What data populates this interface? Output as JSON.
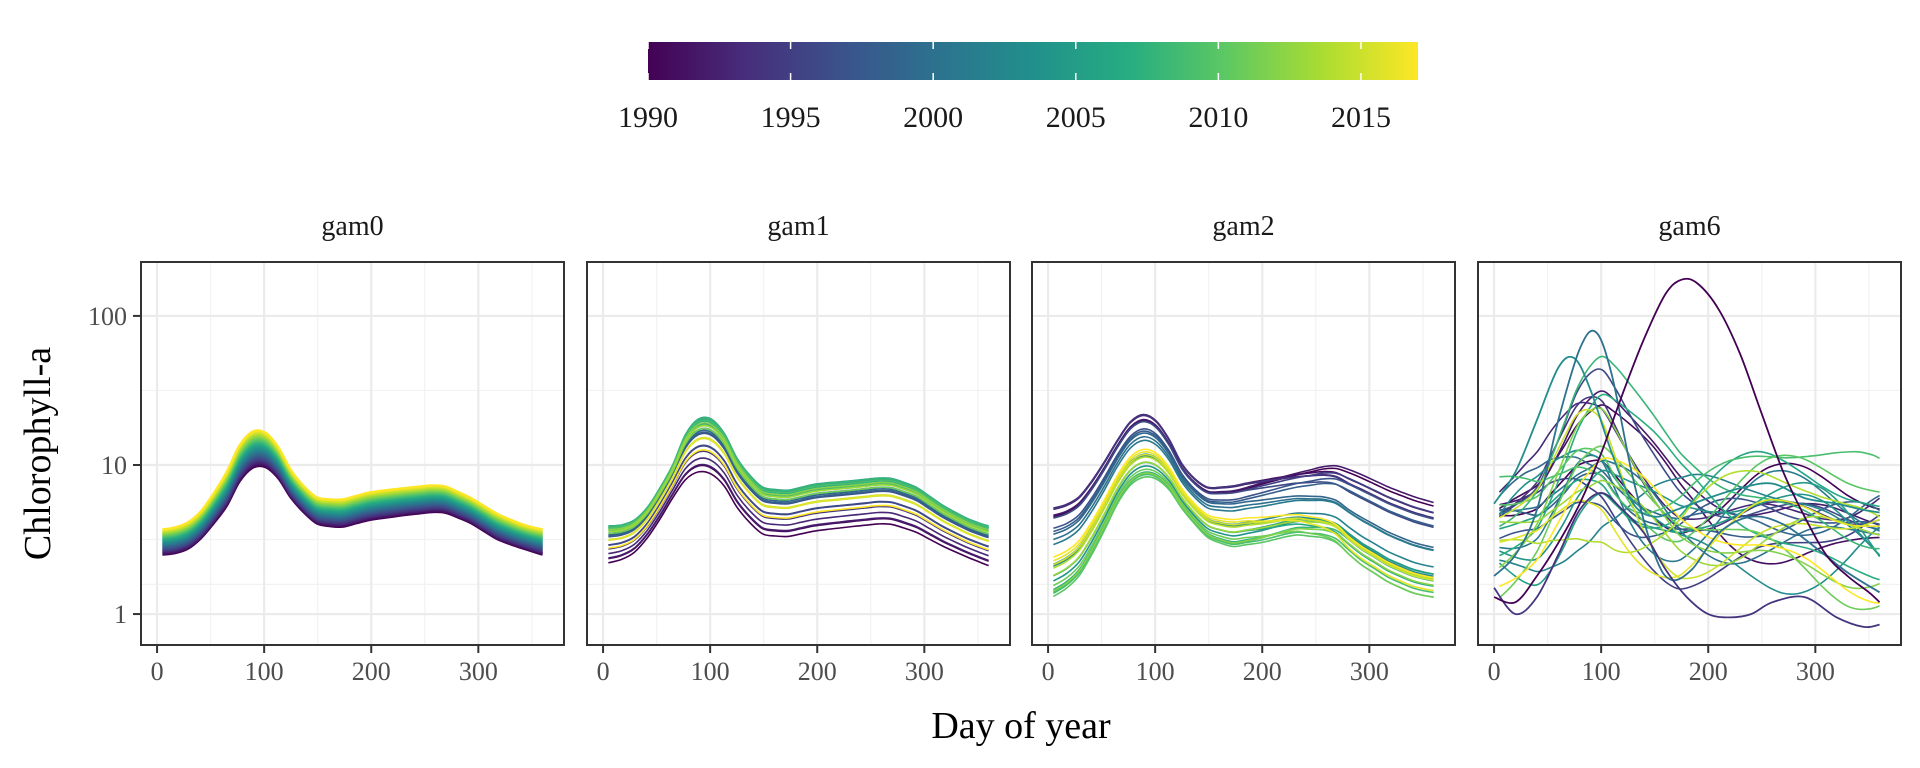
{
  "chart_data": {
    "type": "line",
    "xlabel": "Day of year",
    "ylabel": "Chlorophyll-a",
    "x_scale": "linear",
    "y_scale": "log10",
    "xlim": [
      -15,
      380
    ],
    "ylim": [
      0.62,
      230
    ],
    "x_ticks": [
      0,
      100,
      200,
      300
    ],
    "y_ticks": [
      1,
      10,
      100
    ],
    "grid": true,
    "legend": {
      "type": "colorbar",
      "placement": "top",
      "range": [
        1990,
        2017
      ],
      "ticks": [
        1990,
        1995,
        2000,
        2005,
        2010,
        2015
      ],
      "palette": [
        "#440154",
        "#472D7B",
        "#3B528B",
        "#2C728E",
        "#21908C",
        "#27AD81",
        "#5DC863",
        "#AADC32",
        "#FDE725"
      ]
    },
    "year_range": [
      1990,
      2017
    ],
    "panels": [
      {
        "title": "gam0",
        "note": "smooth trend: curves shift upward uniformly with year",
        "curve_first_year": [
          [
            5,
            2.5
          ],
          [
            25,
            2.6
          ],
          [
            45,
            3.4
          ],
          [
            65,
            5.3
          ],
          [
            80,
            8.5
          ],
          [
            95,
            10.3
          ],
          [
            110,
            8.8
          ],
          [
            130,
            5.3
          ],
          [
            150,
            4.0
          ],
          [
            170,
            3.8
          ],
          [
            200,
            4.3
          ],
          [
            230,
            4.6
          ],
          [
            265,
            4.9
          ],
          [
            290,
            4.2
          ],
          [
            320,
            3.1
          ],
          [
            345,
            2.7
          ],
          [
            360,
            2.5
          ]
        ],
        "curve_last_year": [
          [
            5,
            3.7
          ],
          [
            25,
            3.9
          ],
          [
            45,
            5.2
          ],
          [
            65,
            9.0
          ],
          [
            80,
            15.0
          ],
          [
            95,
            18.0
          ],
          [
            110,
            14.5
          ],
          [
            130,
            8.0
          ],
          [
            150,
            6.0
          ],
          [
            170,
            5.8
          ],
          [
            200,
            6.6
          ],
          [
            230,
            7.0
          ],
          [
            265,
            7.4
          ],
          [
            290,
            6.2
          ],
          [
            320,
            4.6
          ],
          [
            345,
            3.9
          ],
          [
            360,
            3.7
          ]
        ]
      },
      {
        "title": "gam1",
        "note": "year-specific intercepts",
        "curve_low": [
          [
            5,
            2.0
          ],
          [
            25,
            2.2
          ],
          [
            45,
            3.2
          ],
          [
            65,
            5.5
          ],
          [
            80,
            7.5
          ],
          [
            95,
            8.0
          ],
          [
            110,
            6.8
          ],
          [
            130,
            4.0
          ],
          [
            150,
            3.0
          ],
          [
            170,
            2.9
          ],
          [
            200,
            3.2
          ],
          [
            230,
            3.4
          ],
          [
            265,
            3.6
          ],
          [
            290,
            3.2
          ],
          [
            320,
            2.5
          ],
          [
            345,
            2.1
          ],
          [
            360,
            1.9
          ]
        ],
        "curve_high": [
          [
            5,
            3.9
          ],
          [
            25,
            4.0
          ],
          [
            45,
            5.5
          ],
          [
            65,
            10.0
          ],
          [
            80,
            18.0
          ],
          [
            95,
            22.0
          ],
          [
            110,
            18.0
          ],
          [
            130,
            9.5
          ],
          [
            150,
            7.0
          ],
          [
            170,
            6.7
          ],
          [
            200,
            7.5
          ],
          [
            230,
            7.8
          ],
          [
            265,
            8.3
          ],
          [
            290,
            7.3
          ],
          [
            320,
            5.2
          ],
          [
            345,
            4.2
          ],
          [
            360,
            3.9
          ]
        ]
      },
      {
        "title": "gam2",
        "note": "year-specific intercepts and seasonal shapes",
        "curve_low": [
          [
            5,
            1.3
          ],
          [
            25,
            1.6
          ],
          [
            45,
            2.8
          ],
          [
            65,
            5.5
          ],
          [
            80,
            7.8
          ],
          [
            95,
            8.5
          ],
          [
            110,
            7.3
          ],
          [
            130,
            4.5
          ],
          [
            150,
            3.2
          ],
          [
            170,
            2.8
          ],
          [
            200,
            3.0
          ],
          [
            230,
            3.4
          ],
          [
            265,
            3.2
          ],
          [
            290,
            2.2
          ],
          [
            320,
            1.6
          ],
          [
            345,
            1.35
          ],
          [
            360,
            1.3
          ]
        ],
        "curve_high": [
          [
            5,
            5.5
          ],
          [
            25,
            6.0
          ],
          [
            45,
            9.0
          ],
          [
            65,
            15.5
          ],
          [
            80,
            22.0
          ],
          [
            95,
            23.5
          ],
          [
            110,
            17.0
          ],
          [
            130,
            9.0
          ],
          [
            150,
            7.3
          ],
          [
            170,
            7.5
          ],
          [
            200,
            8.4
          ],
          [
            230,
            9.3
          ],
          [
            265,
            10.3
          ],
          [
            290,
            8.8
          ],
          [
            320,
            7.0
          ],
          [
            345,
            6.0
          ],
          [
            360,
            5.6
          ]
        ]
      },
      {
        "title": "gam6",
        "note": "independent year-specific curves",
        "curve_peak_1990": [
          [
            0,
            1.3
          ],
          [
            20,
            1.2
          ],
          [
            40,
            1.8
          ],
          [
            60,
            3.0
          ],
          [
            80,
            5.5
          ],
          [
            100,
            12.0
          ],
          [
            120,
            30.0
          ],
          [
            140,
            70.0
          ],
          [
            160,
            140.0
          ],
          [
            175,
            175.0
          ],
          [
            190,
            165.0
          ],
          [
            210,
            110.0
          ],
          [
            230,
            55.0
          ],
          [
            250,
            22.0
          ],
          [
            270,
            9.0
          ],
          [
            290,
            4.5
          ],
          [
            310,
            2.5
          ],
          [
            330,
            1.8
          ],
          [
            350,
            1.4
          ],
          [
            360,
            1.2
          ]
        ],
        "curve_peak_2003": [
          [
            0,
            5.5
          ],
          [
            20,
            9.0
          ],
          [
            40,
            20.0
          ],
          [
            60,
            45.0
          ],
          [
            75,
            52.0
          ],
          [
            90,
            32.0
          ],
          [
            110,
            12.0
          ],
          [
            130,
            5.5
          ],
          [
            150,
            4.5
          ],
          [
            170,
            5.0
          ],
          [
            200,
            6.0
          ],
          [
            230,
            7.0
          ],
          [
            260,
            7.5
          ],
          [
            290,
            6.0
          ],
          [
            320,
            5.5
          ],
          [
            345,
            5.0
          ],
          [
            360,
            4.8
          ]
        ],
        "curve_peak_2000": [
          [
            0,
            1.8
          ],
          [
            20,
            2.5
          ],
          [
            40,
            5.0
          ],
          [
            60,
            20.0
          ],
          [
            80,
            60.0
          ],
          [
            95,
            78.0
          ],
          [
            110,
            40.0
          ],
          [
            130,
            8.0
          ],
          [
            150,
            2.5
          ],
          [
            165,
            1.7
          ],
          [
            185,
            2.0
          ],
          [
            210,
            3.5
          ],
          [
            240,
            4.5
          ],
          [
            270,
            4.0
          ],
          [
            300,
            2.8
          ],
          [
            330,
            1.9
          ],
          [
            360,
            1.4
          ]
        ],
        "curve_low_late": [
          [
            0,
            1.5
          ],
          [
            20,
            1.0
          ],
          [
            40,
            1.3
          ],
          [
            60,
            2.5
          ],
          [
            80,
            5.0
          ],
          [
            100,
            6.5
          ],
          [
            120,
            5.0
          ],
          [
            140,
            3.5
          ],
          [
            160,
            2.0
          ],
          [
            180,
            1.3
          ],
          [
            200,
            1.0
          ],
          [
            220,
            0.95
          ],
          [
            240,
            1.0
          ],
          [
            260,
            1.2
          ],
          [
            290,
            1.3
          ],
          [
            320,
            0.95
          ],
          [
            345,
            0.82
          ],
          [
            360,
            0.85
          ]
        ]
      }
    ]
  }
}
